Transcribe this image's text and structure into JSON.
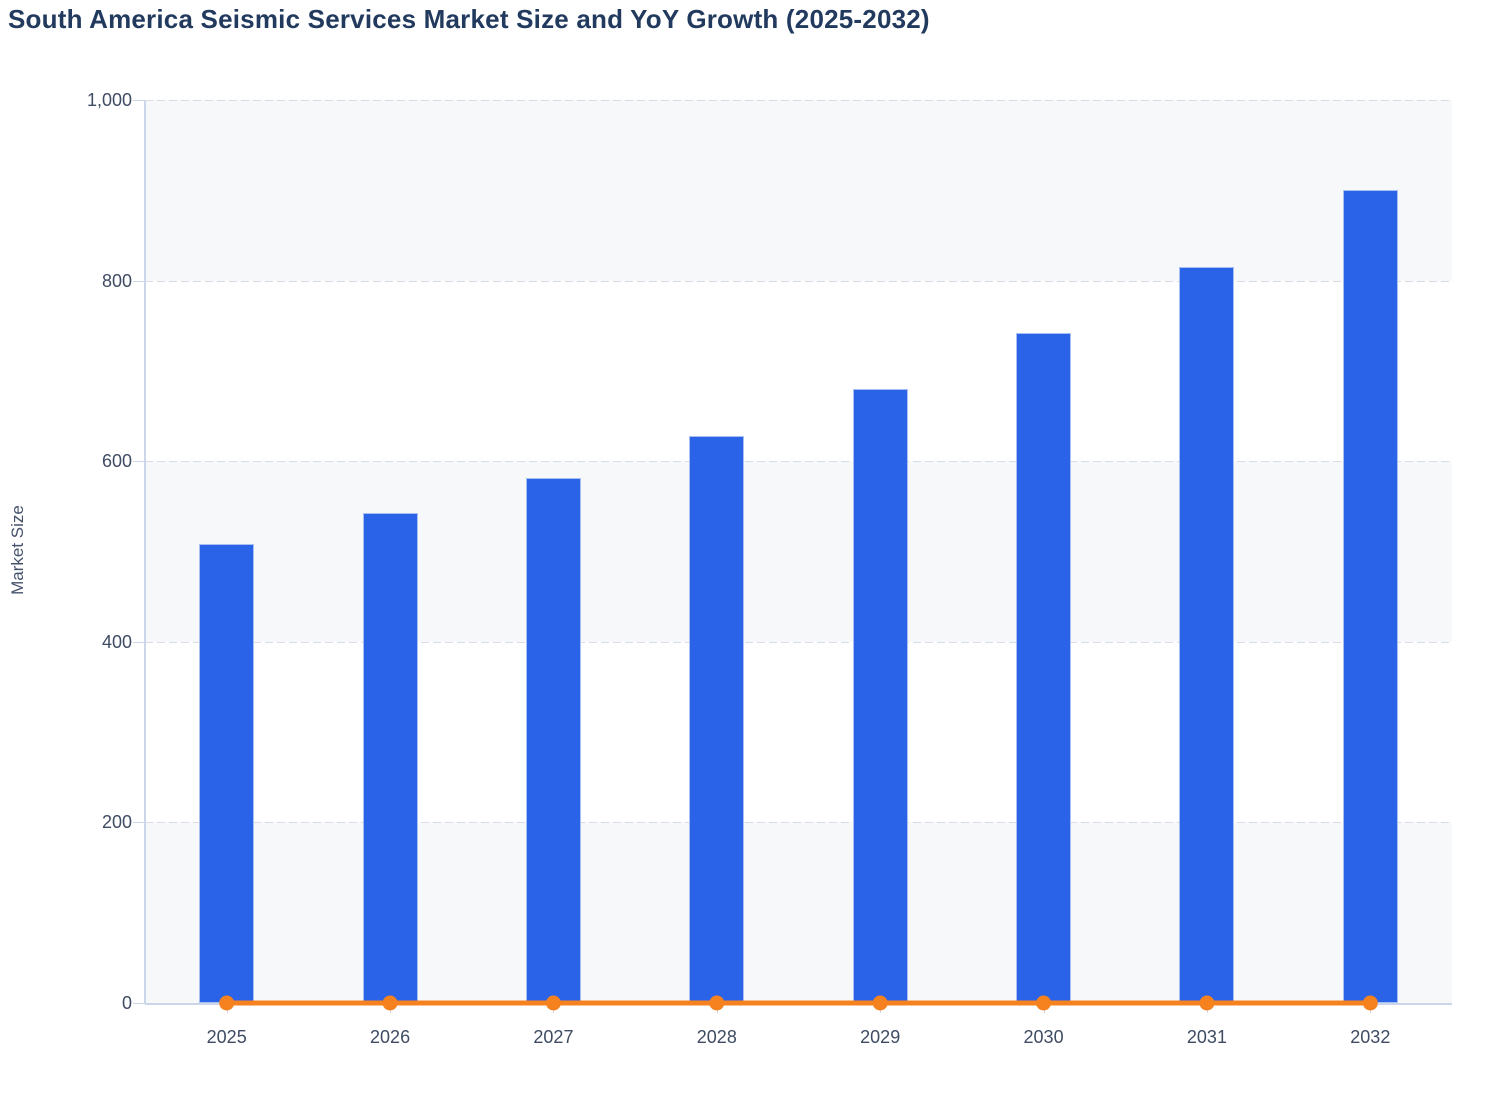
{
  "chart_data": {
    "type": "bar",
    "title": "South America Seismic Services Market Size and YoY Growth (2025-2032)",
    "xlabel": "",
    "ylabel": "Market Size",
    "categories": [
      "2025",
      "2026",
      "2027",
      "2028",
      "2029",
      "2030",
      "2031",
      "2032"
    ],
    "series": [
      {
        "name": "Market Size",
        "type": "bar",
        "values": [
          508,
          543,
          581,
          628,
          680,
          742,
          815,
          900
        ]
      },
      {
        "name": "YoY Growth",
        "type": "line",
        "values": [
          0,
          0,
          0,
          0,
          0,
          0,
          0,
          0
        ]
      }
    ],
    "ylim": [
      0,
      1000
    ],
    "ytick_values": [
      0,
      200,
      400,
      600,
      800,
      1000
    ],
    "ytick_labels": [
      "0",
      "200",
      "400",
      "600",
      "800",
      "1,000"
    ],
    "grid": "dashed horizontal gridlines, alternating background bands",
    "legend": "none"
  },
  "colors": {
    "bar_fill": "#2a63e8",
    "bar_border": "#a8bff2",
    "line_color": "#f6821f",
    "band_shade": "#f7f8fa",
    "band_plain": "#ffffff",
    "axis_line": "#ccd6eb",
    "grid_dash": "#d8dce4",
    "title_text": "#213a5e",
    "axis_text": "#3e4b63"
  }
}
